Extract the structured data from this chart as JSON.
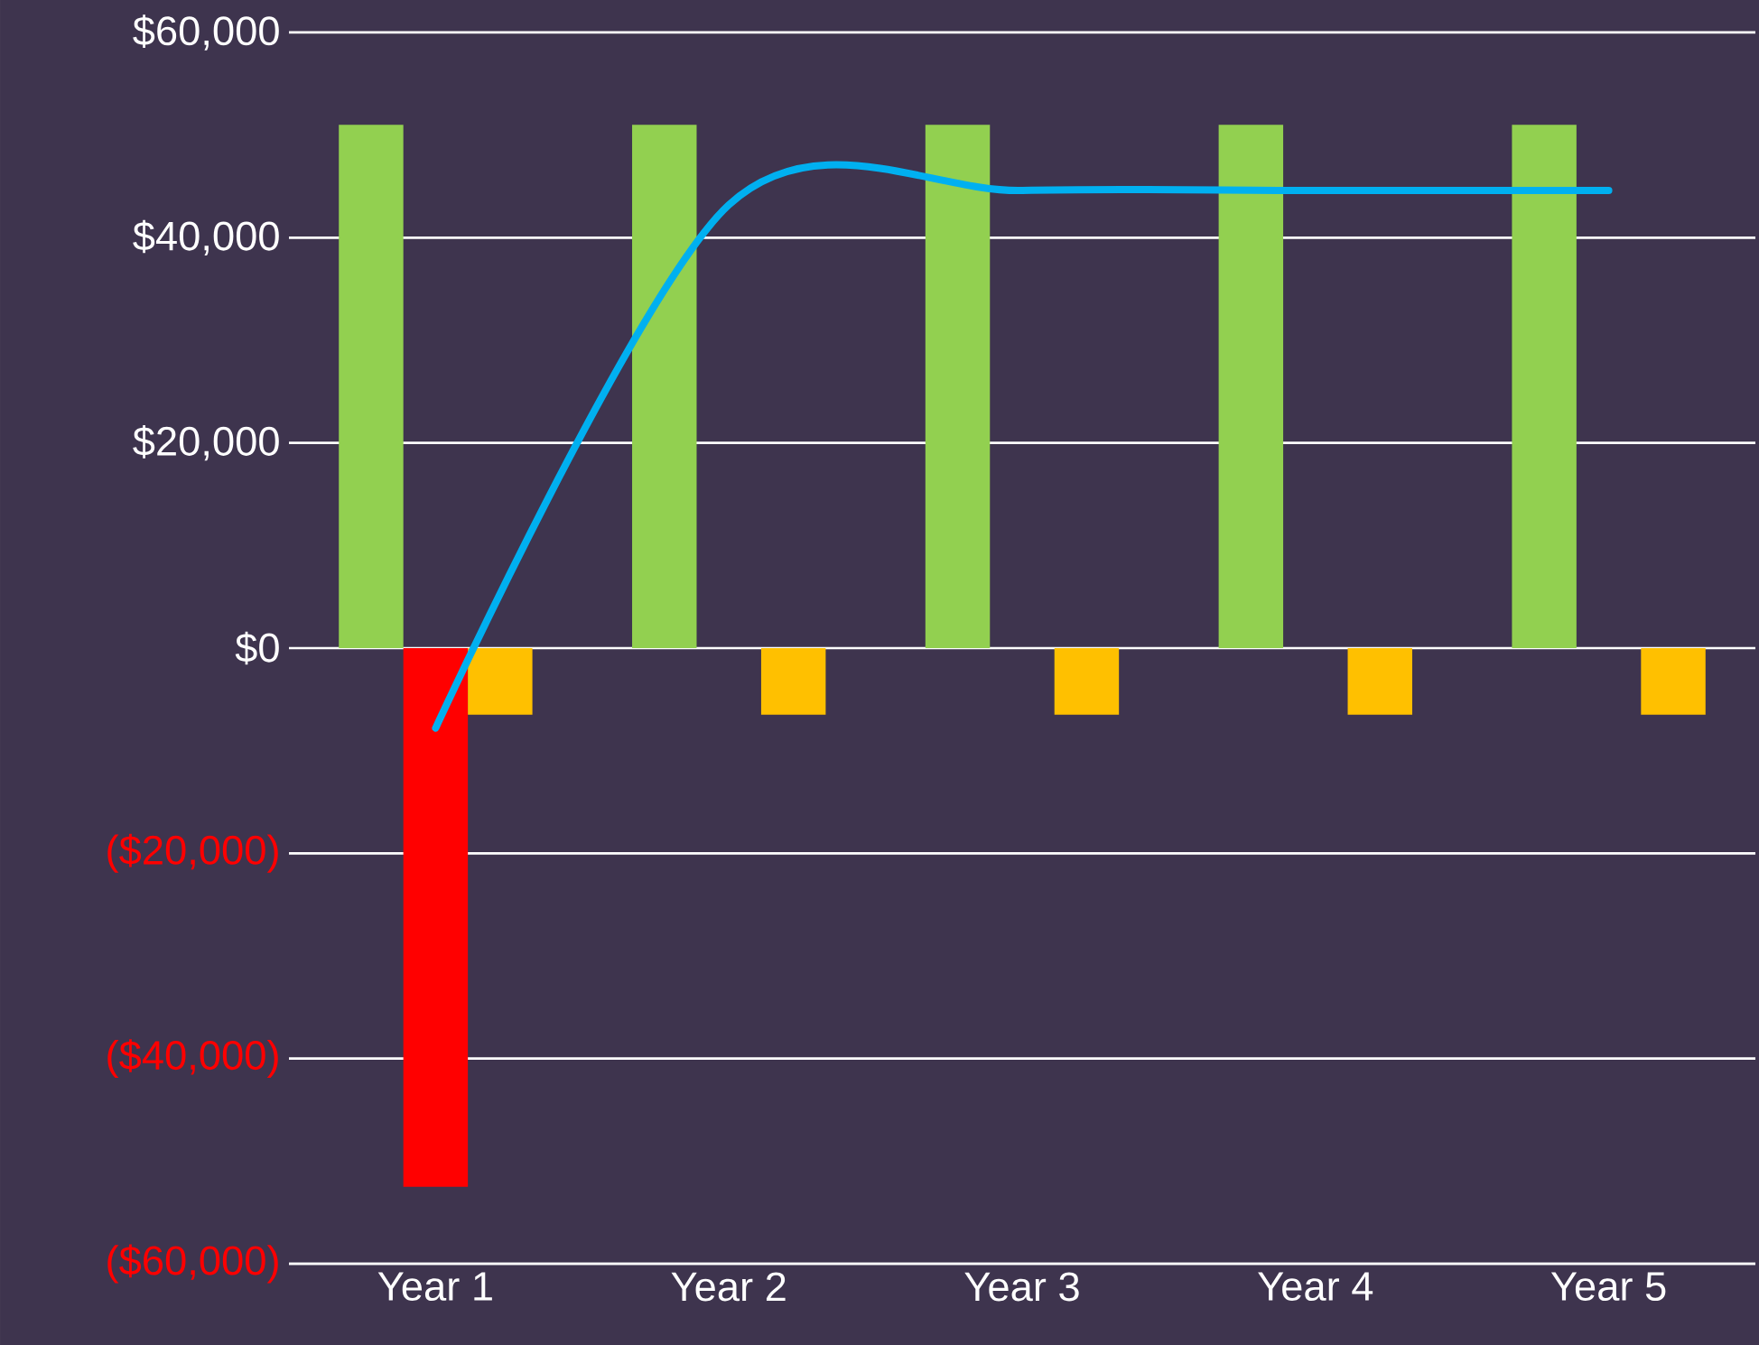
{
  "chart_data": {
    "type": "bar",
    "categories": [
      "Year 1",
      "Year 2",
      "Year 3",
      "Year 4",
      "Year 5"
    ],
    "series": [
      {
        "color": "#92d050",
        "values": [
          51000,
          51000,
          51000,
          51000,
          51000
        ]
      },
      {
        "color": "#ff0000",
        "values": [
          -52500,
          0,
          0,
          0,
          0
        ]
      },
      {
        "color": "#ffc000",
        "values": [
          -6500,
          -6500,
          -6500,
          -6500,
          -6500
        ]
      },
      {
        "type": "line",
        "color": "#00b0f0",
        "values": [
          -7800,
          43200,
          44600,
          44600,
          44600
        ]
      }
    ],
    "ylim": [
      -60000,
      60000
    ],
    "yticks": [
      {
        "value": -60000,
        "label": "($60,000)"
      },
      {
        "value": -40000,
        "label": "($40,000)"
      },
      {
        "value": -20000,
        "label": "($20,000)"
      },
      {
        "value": 0,
        "label": "$0"
      },
      {
        "value": 20000,
        "label": "$20,000"
      },
      {
        "value": 40000,
        "label": "$40,000"
      },
      {
        "value": 60000,
        "label": "$60,000"
      }
    ],
    "grid": "y"
  }
}
